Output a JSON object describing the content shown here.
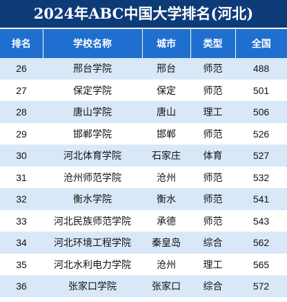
{
  "title": "2024年ABC中国大学排名(河北)",
  "headers": [
    "排名",
    "学校名称",
    "城市",
    "类型",
    "全国"
  ],
  "rows": [
    {
      "rank": "26",
      "school": "邢台学院",
      "city": "邢台",
      "type": "师范",
      "national": "488"
    },
    {
      "rank": "27",
      "school": "保定学院",
      "city": "保定",
      "type": "师范",
      "national": "501"
    },
    {
      "rank": "28",
      "school": "唐山学院",
      "city": "唐山",
      "type": "理工",
      "national": "506"
    },
    {
      "rank": "29",
      "school": "邯郸学院",
      "city": "邯郸",
      "type": "师范",
      "national": "526"
    },
    {
      "rank": "30",
      "school": "河北体育学院",
      "city": "石家庄",
      "type": "体育",
      "national": "527"
    },
    {
      "rank": "31",
      "school": "沧州师范学院",
      "city": "沧州",
      "type": "师范",
      "national": "532"
    },
    {
      "rank": "32",
      "school": "衡水学院",
      "city": "衡水",
      "type": "师范",
      "national": "541"
    },
    {
      "rank": "33",
      "school": "河北民族师范学院",
      "city": "承德",
      "type": "师范",
      "national": "543"
    },
    {
      "rank": "34",
      "school": "河北环境工程学院",
      "city": "秦皇岛",
      "type": "综合",
      "national": "562"
    },
    {
      "rank": "35",
      "school": "河北水利电力学院",
      "city": "沧州",
      "type": "理工",
      "national": "565"
    },
    {
      "rank": "36",
      "school": "张家口学院",
      "city": "张家口",
      "type": "综合",
      "national": "572"
    }
  ],
  "colors": {
    "title_bg": "#0d3b78",
    "header_bg": "#1e6fd0",
    "stripe": "#d8e8f8"
  }
}
